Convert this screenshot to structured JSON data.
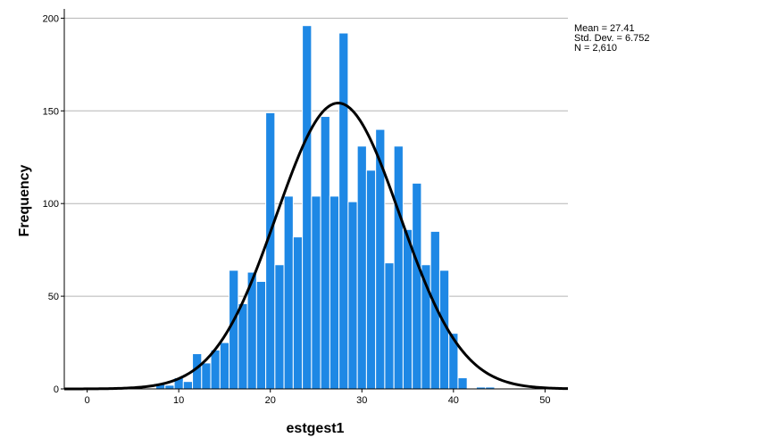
{
  "chart_data": {
    "type": "bar",
    "subtype": "histogram-with-normal-curve",
    "xlabel": "estgest1",
    "ylabel": "Frequency",
    "xlim": [
      -2.5,
      52.5
    ],
    "ylim": [
      0,
      205
    ],
    "x_ticks": [
      0,
      10,
      20,
      30,
      40,
      50
    ],
    "y_ticks": [
      0,
      50,
      100,
      150,
      200
    ],
    "grid": "horizontal",
    "bin_width": 1,
    "bins": [
      {
        "x": 8,
        "value": 3
      },
      {
        "x": 9,
        "value": 2
      },
      {
        "x": 10,
        "value": 6
      },
      {
        "x": 11,
        "value": 4
      },
      {
        "x": 12,
        "value": 19
      },
      {
        "x": 13,
        "value": 14
      },
      {
        "x": 14,
        "value": 21
      },
      {
        "x": 15,
        "value": 25
      },
      {
        "x": 16,
        "value": 64
      },
      {
        "x": 17,
        "value": 46
      },
      {
        "x": 18,
        "value": 63
      },
      {
        "x": 19,
        "value": 58
      },
      {
        "x": 20,
        "value": 149
      },
      {
        "x": 21,
        "value": 67
      },
      {
        "x": 22,
        "value": 104
      },
      {
        "x": 23,
        "value": 82
      },
      {
        "x": 24,
        "value": 196
      },
      {
        "x": 25,
        "value": 104
      },
      {
        "x": 26,
        "value": 147
      },
      {
        "x": 27,
        "value": 104
      },
      {
        "x": 28,
        "value": 192
      },
      {
        "x": 29,
        "value": 101
      },
      {
        "x": 30,
        "value": 131
      },
      {
        "x": 31,
        "value": 118
      },
      {
        "x": 32,
        "value": 140
      },
      {
        "x": 33,
        "value": 68
      },
      {
        "x": 34,
        "value": 131
      },
      {
        "x": 35,
        "value": 86
      },
      {
        "x": 36,
        "value": 111
      },
      {
        "x": 37,
        "value": 67
      },
      {
        "x": 38,
        "value": 85
      },
      {
        "x": 39,
        "value": 64
      },
      {
        "x": 40,
        "value": 30
      },
      {
        "x": 41,
        "value": 6
      },
      {
        "x": 43,
        "value": 1
      },
      {
        "x": 44,
        "value": 1
      }
    ],
    "normal_curve": {
      "mean": 27.41,
      "std_dev": 6.752,
      "n": 2610,
      "bin_width": 1
    },
    "stats_box": {
      "lines": [
        "Mean = 27.41",
        "Std. Dev. = 6.752",
        "N = 2,610"
      ],
      "position": "top-right"
    },
    "colors": {
      "bar_fill": "#1E88E5",
      "bar_stroke": "#ffffff",
      "curve": "#000000",
      "grid": "#b5b5b5",
      "axis": "#000000"
    }
  }
}
